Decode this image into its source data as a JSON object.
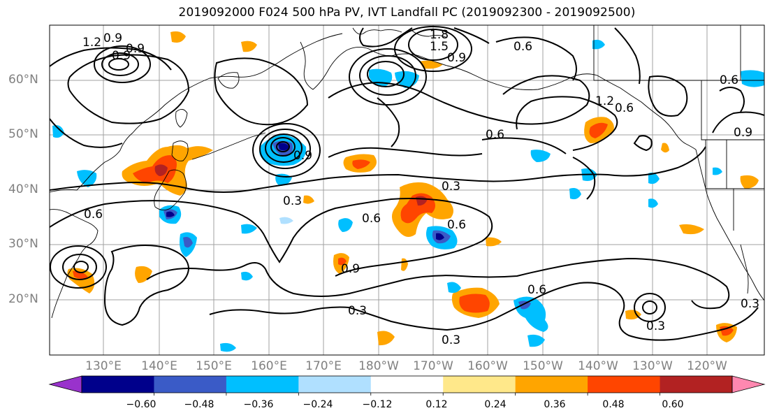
{
  "title": "2019092000 F024 500 hPa PV, IVT Landfall PC (2019092300 - 2019092500)",
  "lat_labels": [
    "60°N",
    "50°N",
    "40°N",
    "30°N",
    "20°N"
  ],
  "lon_labels": [
    "130°E",
    "140°E",
    "150°E",
    "160°E",
    "170°E",
    "180°W",
    "170°W",
    "160°W",
    "150°W",
    "140°W",
    "130°W",
    "120°W"
  ],
  "colorbar": {
    "ticks": [
      "−0.60",
      "−0.48",
      "−0.36",
      "−0.24",
      "−0.12",
      "0.12",
      "0.24",
      "0.36",
      "0.48",
      "0.60"
    ],
    "colors": [
      "#9932cc",
      "#00008b",
      "#3a5bc7",
      "#00bfff",
      "#b0e0ff",
      "#ffffff",
      "#ffe88a",
      "#ffa500",
      "#ff4500",
      "#b22222",
      "#ff88b0"
    ]
  },
  "contour_labels": [
    "1.2",
    "0.9",
    "1.8",
    "1.5",
    "0.6",
    "0.9",
    "0.6",
    "0.9",
    "1.2",
    "0.9",
    "0.6",
    "0.6",
    "0.9",
    "0.3",
    "0.3",
    "0.3",
    "0.6",
    "0.9",
    "0.6",
    "0.3",
    "0.6",
    "0.3",
    "0.3",
    "0.6",
    "0.9"
  ]
}
